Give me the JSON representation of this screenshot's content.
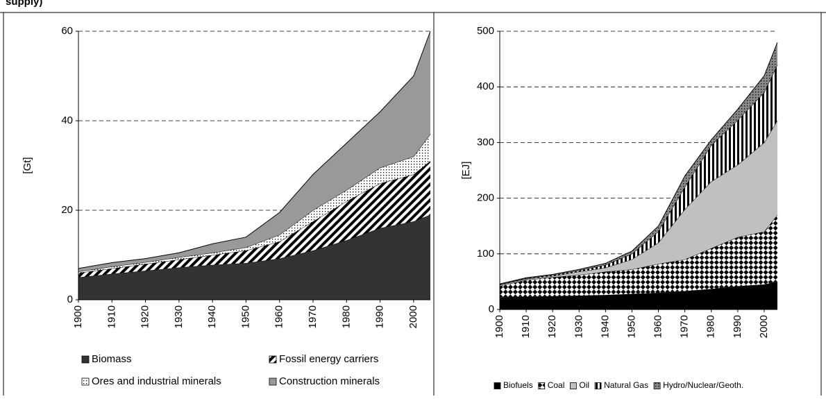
{
  "caption_fragment": "supply)",
  "chart_data": [
    {
      "type": "area",
      "stacked": true,
      "ylabel": "[Gt]",
      "x": [
        1900,
        1910,
        1920,
        1930,
        1940,
        1950,
        1960,
        1970,
        1980,
        1990,
        2000,
        2005
      ],
      "xlim": [
        1900,
        2005
      ],
      "xticks": [
        1900,
        1910,
        1920,
        1930,
        1940,
        1950,
        1960,
        1970,
        1980,
        1990,
        2000
      ],
      "ylim": [
        0,
        60
      ],
      "yticks": [
        0,
        20,
        40,
        60
      ],
      "grid": true,
      "legend": "bottom",
      "series": [
        {
          "name": "Biomass",
          "color": "#333333",
          "pattern": "none",
          "values": [
            5,
            5.8,
            6.5,
            7.2,
            7.8,
            8.2,
            9.2,
            11,
            13.3,
            16,
            17.5,
            19
          ]
        },
        {
          "name": "Fossil energy carriers",
          "color": "#ffffff",
          "pattern": "diag",
          "values": [
            1,
            1.2,
            1.5,
            1.8,
            2.2,
            2.8,
            3.8,
            6.5,
            8.7,
            10,
            10.5,
            12
          ]
        },
        {
          "name": "Ores and industrial minerals",
          "color": "#ffffff",
          "pattern": "dots",
          "values": [
            0.3,
            0.4,
            0.4,
            0.5,
            0.5,
            0.7,
            1.5,
            2.5,
            2.5,
            3.5,
            4,
            6
          ]
        },
        {
          "name": "Construction minerals",
          "color": "#999999",
          "pattern": "none",
          "values": [
            0.7,
            0.9,
            0.8,
            1,
            2,
            2.3,
            5,
            8,
            10.5,
            12.5,
            18,
            23
          ]
        }
      ]
    },
    {
      "type": "area",
      "stacked": true,
      "ylabel": "[EJ]",
      "x": [
        1900,
        1910,
        1920,
        1930,
        1940,
        1950,
        1960,
        1970,
        1980,
        1990,
        2000,
        2005
      ],
      "xlim": [
        1900,
        2005
      ],
      "xticks": [
        1900,
        1910,
        1920,
        1930,
        1940,
        1950,
        1960,
        1970,
        1980,
        1990,
        2000
      ],
      "ylim": [
        0,
        500
      ],
      "yticks": [
        0,
        100,
        200,
        300,
        400,
        500
      ],
      "grid": true,
      "legend": "bottom",
      "series": [
        {
          "name": "Biofuels",
          "color": "#000000",
          "pattern": "none",
          "values": [
            22,
            23,
            24,
            25,
            26,
            28,
            30,
            33,
            37,
            42,
            45,
            50
          ]
        },
        {
          "name": "Coal",
          "color": "#ffffff",
          "pattern": "checker",
          "values": [
            20,
            30,
            34,
            37,
            42,
            44,
            52,
            57,
            73,
            88,
            95,
            120
          ]
        },
        {
          "name": "Oil",
          "color": "#c0c0c0",
          "pattern": "none",
          "values": [
            2,
            2,
            2,
            6,
            7,
            18,
            38,
            90,
            120,
            130,
            160,
            170
          ]
        },
        {
          "name": "Natural Gas",
          "color": "#ffffff",
          "pattern": "vstripe",
          "values": [
            1,
            1,
            2,
            2,
            5,
            10,
            20,
            40,
            65,
            80,
            90,
            100
          ]
        },
        {
          "name": "Hydro/Nuclear/Geoth.",
          "color": "#888888",
          "pattern": "dots",
          "values": [
            1,
            1,
            1,
            2,
            3,
            5,
            10,
            20,
            10,
            20,
            30,
            40
          ]
        }
      ]
    }
  ]
}
